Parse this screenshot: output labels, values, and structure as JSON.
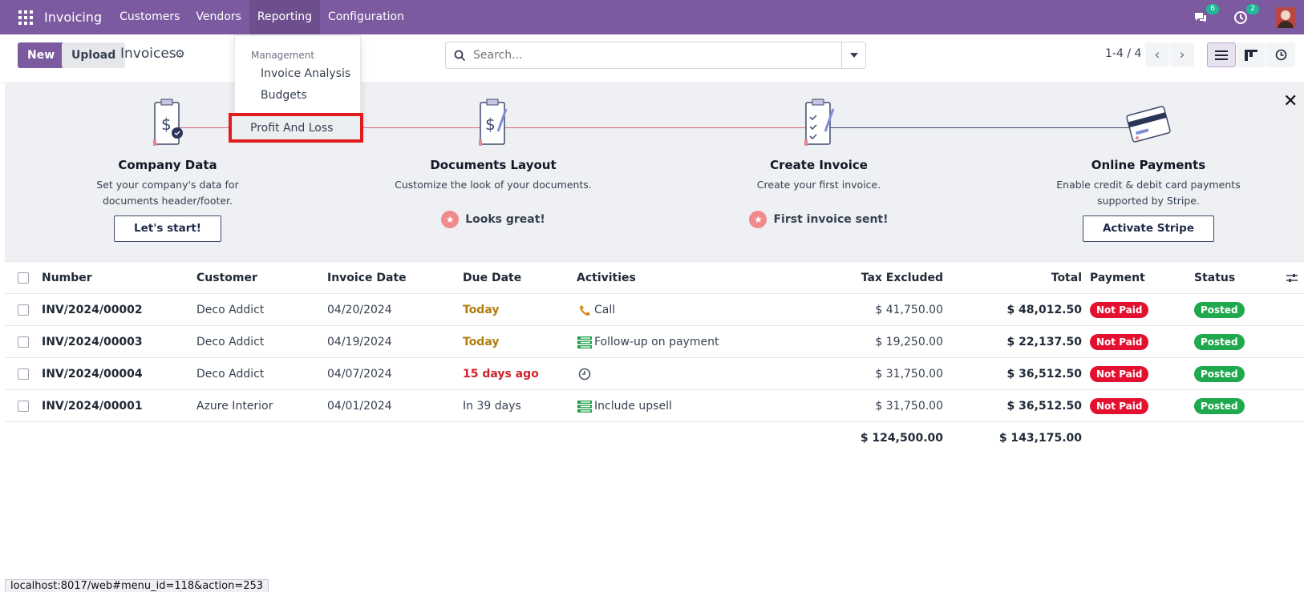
{
  "navbar": {
    "brand": "Invoicing",
    "menu": [
      "Customers",
      "Vendors",
      "Reporting",
      "Configuration"
    ],
    "messages_count": "6",
    "activities_count": "2"
  },
  "control_panel": {
    "new_label": "New",
    "upload_label": "Upload",
    "title": "Invoices",
    "search_placeholder": "Search...",
    "pager": "1-4 / 4"
  },
  "reporting_menu": {
    "section": "Management",
    "items": [
      "Invoice Analysis",
      "Budgets"
    ],
    "highlighted_item": "Profit And Loss"
  },
  "onboarding": {
    "steps": [
      {
        "title": "Company Data",
        "desc": "Set your company's data for documents header/footer.",
        "action": "Let's start!"
      },
      {
        "title": "Documents Layout",
        "desc": "Customize the look of your documents.",
        "done": "Looks great!"
      },
      {
        "title": "Create Invoice",
        "desc": "Create your first invoice.",
        "done": "First invoice sent!"
      },
      {
        "title": "Online Payments",
        "desc": "Enable credit & debit card payments supported by Stripe.",
        "action": "Activate Stripe"
      }
    ]
  },
  "table": {
    "columns": [
      "Number",
      "Customer",
      "Invoice Date",
      "Due Date",
      "Activities",
      "Tax Excluded",
      "Total",
      "Payment",
      "Status"
    ],
    "rows": [
      {
        "number": "INV/2024/00002",
        "customer": "Deco Addict",
        "invoice_date": "04/20/2024",
        "due": "Today",
        "activity": "Call",
        "activity_icon": "phone-icon",
        "tax_excluded": "$ 41,750.00",
        "total": "$ 48,012.50",
        "payment": "Not Paid",
        "status": "Posted"
      },
      {
        "number": "INV/2024/00003",
        "customer": "Deco Addict",
        "invoice_date": "04/19/2024",
        "due": "Today",
        "activity": "Follow-up on payment",
        "activity_icon": "todo-list-icon",
        "tax_excluded": "$ 19,250.00",
        "total": "$ 22,137.50",
        "payment": "Not Paid",
        "status": "Posted"
      },
      {
        "number": "INV/2024/00004",
        "customer": "Deco Addict",
        "invoice_date": "04/07/2024",
        "due": "15 days ago",
        "activity": "",
        "activity_icon": "clock-icon",
        "tax_excluded": "$ 31,750.00",
        "total": "$ 36,512.50",
        "payment": "Not Paid",
        "status": "Posted"
      },
      {
        "number": "INV/2024/00001",
        "customer": "Azure Interior",
        "invoice_date": "04/01/2024",
        "due": "In 39 days",
        "activity": "Include upsell",
        "activity_icon": "todo-list-icon",
        "tax_excluded": "$ 31,750.00",
        "total": "$ 36,512.50",
        "payment": "Not Paid",
        "status": "Posted"
      }
    ],
    "total_tax_excluded": "$ 124,500.00",
    "total_total": "$ 143,175.00"
  },
  "status_bar": {
    "url": "localhost:8017/web#menu_id=118&action=253"
  }
}
